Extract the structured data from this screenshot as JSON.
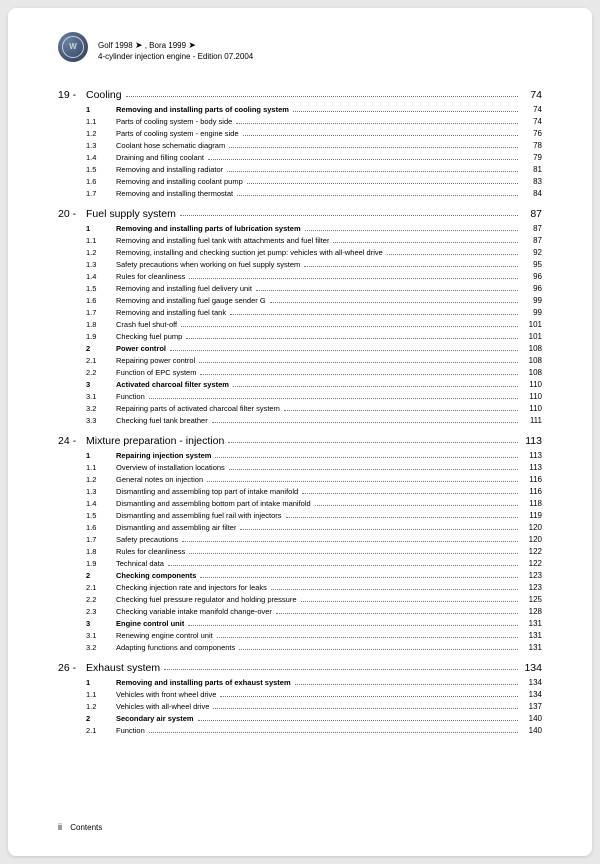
{
  "header": {
    "line1_a": "Golf 1998",
    "line1_b": ", Bora 1999",
    "line2": "4-cylinder injection engine - Edition 07.2004",
    "logo_text": "W"
  },
  "footer": {
    "pg": "ii",
    "label": "Contents"
  },
  "sections": [
    {
      "num": "19 -",
      "title": "Cooling",
      "page": "74",
      "rows": [
        {
          "n": "1",
          "t": "Removing and installing parts of cooling system",
          "p": "74",
          "b": true
        },
        {
          "n": "1.1",
          "t": "Parts of cooling system - body side",
          "p": "74"
        },
        {
          "n": "1.2",
          "t": "Parts of cooling system - engine side",
          "p": "76"
        },
        {
          "n": "1.3",
          "t": "Coolant hose schematic diagram",
          "p": "78"
        },
        {
          "n": "1.4",
          "t": "Draining and filling coolant",
          "p": "79"
        },
        {
          "n": "1.5",
          "t": "Removing and installing radiator",
          "p": "81"
        },
        {
          "n": "1.6",
          "t": "Removing and installing coolant pump",
          "p": "83"
        },
        {
          "n": "1.7",
          "t": "Removing and installing thermostat",
          "p": "84"
        }
      ]
    },
    {
      "num": "20 -",
      "title": "Fuel supply system",
      "page": "87",
      "rows": [
        {
          "n": "1",
          "t": "Removing and installing parts of lubrication system",
          "p": "87",
          "b": true
        },
        {
          "n": "1.1",
          "t": "Removing and installing fuel tank with attachments and fuel filter",
          "p": "87"
        },
        {
          "n": "1.2",
          "t": "Removing, installing and checking suction jet pump: vehicles with all-wheel drive",
          "p": "92"
        },
        {
          "n": "1.3",
          "t": "Safety precautions when working on fuel supply system",
          "p": "95"
        },
        {
          "n": "1.4",
          "t": "Rules for cleanliness",
          "p": "96"
        },
        {
          "n": "1.5",
          "t": "Removing and installing fuel delivery unit",
          "p": "96"
        },
        {
          "n": "1.6",
          "t": "Removing and installing fuel gauge sender G",
          "p": "99"
        },
        {
          "n": "1.7",
          "t": "Removing and installing fuel tank",
          "p": "99"
        },
        {
          "n": "1.8",
          "t": "Crash fuel shut-off",
          "p": "101"
        },
        {
          "n": "1.9",
          "t": "Checking fuel pump",
          "p": "101"
        },
        {
          "n": "2",
          "t": "Power control",
          "p": "108",
          "b": true
        },
        {
          "n": "2.1",
          "t": "Repairing power control",
          "p": "108"
        },
        {
          "n": "2.2",
          "t": "Function of EPC system",
          "p": "108"
        },
        {
          "n": "3",
          "t": "Activated charcoal filter system",
          "p": "110",
          "b": true
        },
        {
          "n": "3.1",
          "t": "Function",
          "p": "110"
        },
        {
          "n": "3.2",
          "t": "Repairing parts of activated charcoal filter system",
          "p": "110"
        },
        {
          "n": "3.3",
          "t": "Checking fuel tank breather",
          "p": "111"
        }
      ]
    },
    {
      "num": "24 -",
      "title": "Mixture preparation - injection",
      "page": "113",
      "rows": [
        {
          "n": "1",
          "t": "Repairing injection system",
          "p": "113",
          "b": true
        },
        {
          "n": "1.1",
          "t": "Overview of installation locations",
          "p": "113"
        },
        {
          "n": "1.2",
          "t": "General notes on injection",
          "p": "116"
        },
        {
          "n": "1.3",
          "t": "Dismantling and assembling top part of intake manifold",
          "p": "116"
        },
        {
          "n": "1.4",
          "t": "Dismantling and assembling bottom part of intake manifold",
          "p": "118"
        },
        {
          "n": "1.5",
          "t": "Dismantling and assembling fuel rail with injectors",
          "p": "119"
        },
        {
          "n": "1.6",
          "t": "Dismantling and assembling air filter",
          "p": "120"
        },
        {
          "n": "1.7",
          "t": "Safety precautions",
          "p": "120"
        },
        {
          "n": "1.8",
          "t": "Rules for cleanliness",
          "p": "122"
        },
        {
          "n": "1.9",
          "t": "Technical data",
          "p": "122"
        },
        {
          "n": "2",
          "t": "Checking components",
          "p": "123",
          "b": true
        },
        {
          "n": "2.1",
          "t": "Checking injection rate and injectors for leaks",
          "p": "123"
        },
        {
          "n": "2.2",
          "t": "Checking fuel pressure regulator and holding pressure",
          "p": "125"
        },
        {
          "n": "2.3",
          "t": "Checking variable intake manifold change-over",
          "p": "128"
        },
        {
          "n": "3",
          "t": "Engine control unit",
          "p": "131",
          "b": true
        },
        {
          "n": "3.1",
          "t": "Renewing engine control unit",
          "p": "131"
        },
        {
          "n": "3.2",
          "t": "Adapting functions and components",
          "p": "131"
        }
      ]
    },
    {
      "num": "26 -",
      "title": "Exhaust system",
      "page": "134",
      "rows": [
        {
          "n": "1",
          "t": "Removing and installing parts of exhaust system",
          "p": "134",
          "b": true
        },
        {
          "n": "1.1",
          "t": "Vehicles with front wheel drive",
          "p": "134"
        },
        {
          "n": "1.2",
          "t": "Vehicles with all-wheel drive",
          "p": "137"
        },
        {
          "n": "2",
          "t": "Secondary air system",
          "p": "140",
          "b": true
        },
        {
          "n": "2.1",
          "t": "Function",
          "p": "140"
        }
      ]
    }
  ]
}
